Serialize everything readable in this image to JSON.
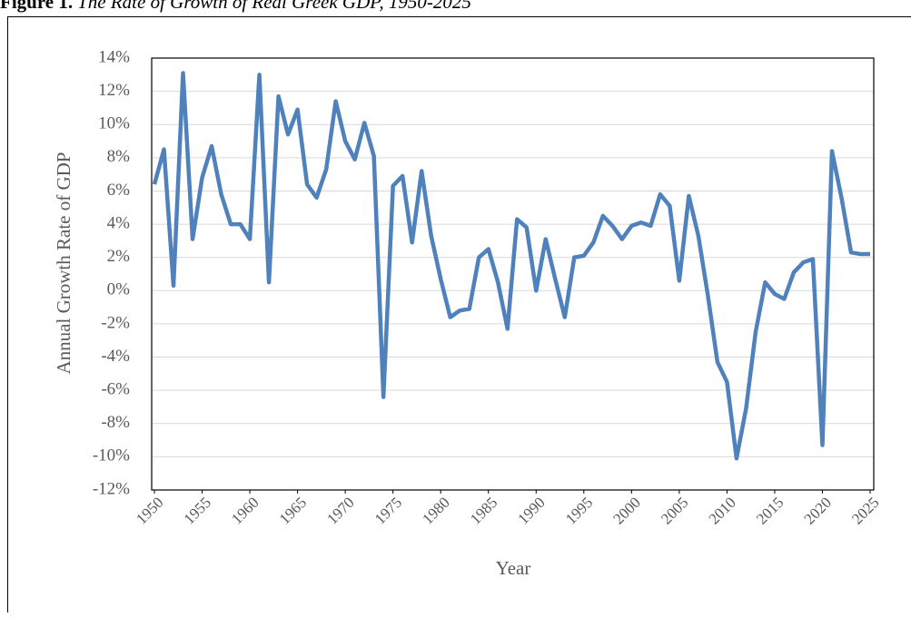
{
  "chart_data": {
    "type": "line",
    "title_label": "Figure 1.",
    "title": "The Rate of Growth of Real Greek GDP, 1950-2025",
    "y_label": "Annual  Growth Rate  of GDP",
    "x_label": "Year",
    "color": "#4f81bd",
    "x": [
      1950,
      1951,
      1952,
      1953,
      1954,
      1955,
      1956,
      1957,
      1958,
      1959,
      1960,
      1961,
      1962,
      1963,
      1964,
      1965,
      1966,
      1967,
      1968,
      1969,
      1970,
      1971,
      1972,
      1973,
      1974,
      1975,
      1976,
      1977,
      1978,
      1979,
      1980,
      1981,
      1982,
      1983,
      1984,
      1985,
      1986,
      1987,
      1988,
      1989,
      1990,
      1991,
      1992,
      1993,
      1994,
      1995,
      1996,
      1997,
      1998,
      1999,
      2000,
      2001,
      2002,
      2003,
      2004,
      2005,
      2006,
      2007,
      2008,
      2009,
      2010,
      2011,
      2012,
      2013,
      2014,
      2015,
      2016,
      2017,
      2018,
      2019,
      2020,
      2021,
      2022,
      2023,
      2024,
      2025
    ],
    "values": [
      6.4,
      8.5,
      0.3,
      13.1,
      3.1,
      6.8,
      8.7,
      5.8,
      4.0,
      4.0,
      3.1,
      13.0,
      0.5,
      11.7,
      9.4,
      10.9,
      6.4,
      5.6,
      7.3,
      11.4,
      9.0,
      7.9,
      10.1,
      8.1,
      -6.4,
      6.3,
      6.9,
      2.9,
      7.2,
      3.3,
      0.7,
      -1.6,
      -1.2,
      -1.1,
      2.0,
      2.5,
      0.5,
      -2.3,
      4.3,
      3.8,
      0.0,
      3.1,
      0.7,
      -1.6,
      2.0,
      2.1,
      2.9,
      4.5,
      3.9,
      3.1,
      3.9,
      4.1,
      3.9,
      5.8,
      5.1,
      0.6,
      5.7,
      3.3,
      -0.3,
      -4.3,
      -5.5,
      -10.1,
      -7.1,
      -2.5,
      0.5,
      -0.2,
      -0.5,
      1.1,
      1.7,
      1.9,
      -9.3,
      8.4,
      5.6,
      2.3,
      2.2,
      2.2
    ],
    "xlim": [
      1950,
      2025
    ],
    "xticks": [
      1950,
      1955,
      1960,
      1965,
      1970,
      1975,
      1980,
      1985,
      1990,
      1995,
      2000,
      2005,
      2010,
      2015,
      2020,
      2025
    ],
    "ylim": [
      -12,
      14
    ],
    "yticks": [
      {
        "value": -12,
        "label": "-12%"
      },
      {
        "value": -10,
        "label": "-10%"
      },
      {
        "value": -8,
        "label": "-8%"
      },
      {
        "value": -6,
        "label": "-6%"
      },
      {
        "value": -4,
        "label": "-4%"
      },
      {
        "value": -2,
        "label": "-2%"
      },
      {
        "value": 0,
        "label": "0%"
      },
      {
        "value": 2,
        "label": "2%"
      },
      {
        "value": 4,
        "label": "4%"
      },
      {
        "value": 6,
        "label": "6%"
      },
      {
        "value": 8,
        "label": "8%"
      },
      {
        "value": 10,
        "label": "10%"
      },
      {
        "value": 12,
        "label": "12%"
      },
      {
        "value": 14,
        "label": "14%"
      }
    ],
    "grid": true
  }
}
